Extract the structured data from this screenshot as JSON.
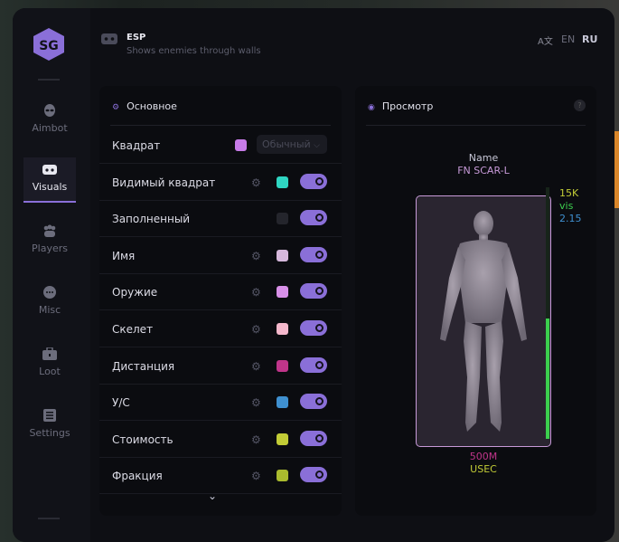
{
  "header": {
    "title": "ESP",
    "subtitle": "Shows enemies through walls",
    "lang_en": "EN",
    "lang_ru": "RU"
  },
  "sidebar": {
    "logo": "SG",
    "items": [
      {
        "label": "Aimbot",
        "icon": "alien-icon"
      },
      {
        "label": "Visuals",
        "icon": "vr-headset-icon",
        "active": true
      },
      {
        "label": "Players",
        "icon": "users-icon"
      },
      {
        "label": "Misc",
        "icon": "dots-icon"
      },
      {
        "label": "Loot",
        "icon": "toolbox-icon"
      },
      {
        "label": "Settings",
        "icon": "list-icon"
      }
    ]
  },
  "main_panel": {
    "title": "Основное",
    "rows": [
      {
        "label": "Квадрат",
        "color": "#c77be8",
        "select": "Обычный"
      },
      {
        "label": "Видимый квадрат",
        "color": "#2fd6c2",
        "enabled": true
      },
      {
        "label": "Заполненный",
        "color": "#24252c",
        "enabled": true
      },
      {
        "label": "Имя",
        "color": "#d6b8dc",
        "enabled": true
      },
      {
        "label": "Оружие",
        "color": "#d890e8",
        "enabled": true
      },
      {
        "label": "Скелет",
        "color": "#f5b8cc",
        "enabled": true
      },
      {
        "label": "Дистанция",
        "color": "#c0358a",
        "enabled": true
      },
      {
        "label": "У/С",
        "color": "#3f90d0",
        "enabled": true
      },
      {
        "label": "Стоимость",
        "color": "#c2cc36",
        "enabled": true
      },
      {
        "label": "Фракция",
        "color": "#aabb2e",
        "enabled": true
      }
    ]
  },
  "preview": {
    "title": "Просмотр",
    "help": "?",
    "name": "Name",
    "weapon": "FN SCAR-L",
    "value": "15K",
    "visible": "vis",
    "kd": "2.15",
    "distance": "500M",
    "faction": "USEC",
    "health_fraction": 0.48
  }
}
